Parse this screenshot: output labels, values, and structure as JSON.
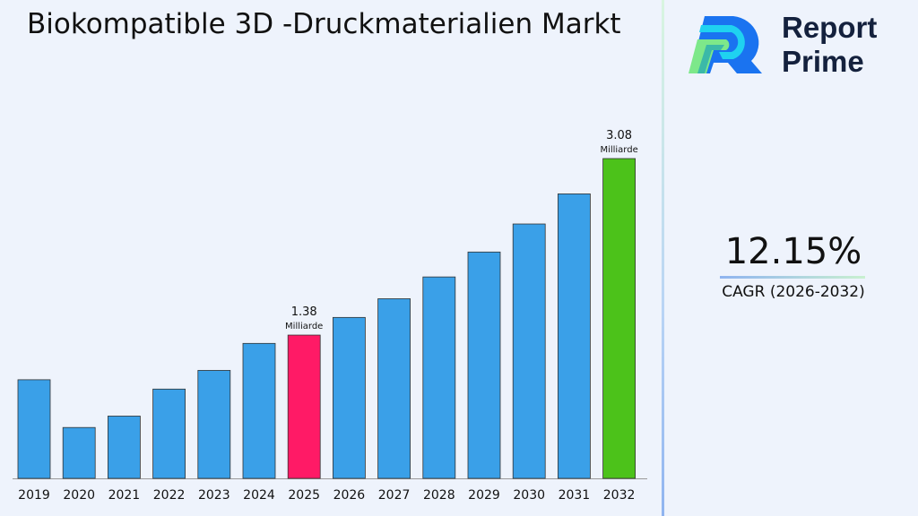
{
  "title": "Biokompatible 3D -Druckmaterialien Markt",
  "brand": {
    "line1": "Report",
    "line2": "Prime"
  },
  "cagr": {
    "value": "12.15%",
    "label": "CAGR (2026-2032)"
  },
  "colors": {
    "default": "#3aa0e8",
    "highlight_2025": "#ff1a66",
    "highlight_2032": "#4cc21a"
  },
  "chart_data": {
    "type": "bar",
    "title": "Biokompatible 3D -Druckmaterialien Markt",
    "categories": [
      "2019",
      "2020",
      "2021",
      "2022",
      "2023",
      "2024",
      "2025",
      "2026",
      "2027",
      "2028",
      "2029",
      "2030",
      "2031",
      "2032"
    ],
    "values": [
      0.95,
      0.49,
      0.6,
      0.86,
      1.04,
      1.3,
      1.38,
      1.55,
      1.73,
      1.94,
      2.18,
      2.45,
      2.74,
      3.08
    ],
    "unit": "Milliarde",
    "data_labels": [
      {
        "category": "2025",
        "value": "1.38",
        "unit": "Milliarde"
      },
      {
        "category": "2032",
        "value": "3.08",
        "unit": "Milliarde"
      }
    ],
    "ylim": [
      0,
      3.3
    ],
    "grid": false,
    "legend": "none"
  }
}
